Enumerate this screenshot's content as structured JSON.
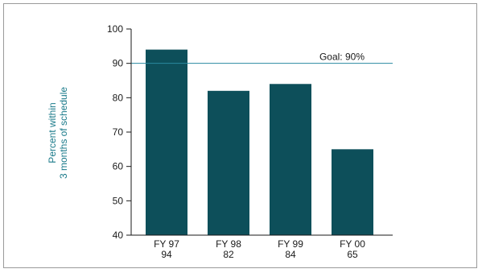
{
  "chart_data": {
    "type": "bar",
    "categories": [
      "FY 97",
      "FY 98",
      "FY 99",
      "FY 00"
    ],
    "values": [
      94,
      82,
      84,
      65
    ],
    "value_labels": [
      "94",
      "82",
      "84",
      "65"
    ],
    "ylabel_lines": [
      "Percent within",
      "3 months of schedule"
    ],
    "xlabel": "",
    "ylim": [
      40,
      100
    ],
    "yticks": [
      40,
      50,
      60,
      70,
      80,
      90,
      100
    ],
    "goal": {
      "value": 90,
      "label": "Goal: 90%"
    },
    "grid": false,
    "colors": {
      "bar": "#0d4f5a",
      "goal_line": "#2a8aa0",
      "axis_title": "#1a7a8a"
    }
  }
}
